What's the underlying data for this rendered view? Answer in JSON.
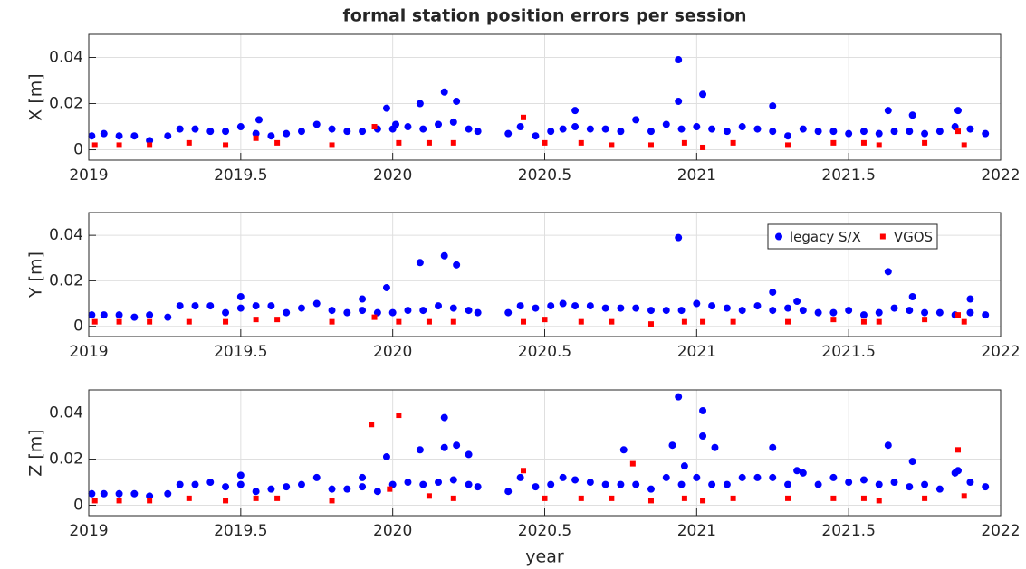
{
  "chart_data": [
    {
      "type": "scatter",
      "title": "formal station position errors per session",
      "ylabel": "X [m]",
      "xlim": [
        2019,
        2022
      ],
      "xticks": [
        2019,
        2019.5,
        2020,
        2020.5,
        2021,
        2021.5,
        2022
      ],
      "ylim": [
        -0.0045,
        0.05
      ],
      "yticks": [
        0,
        0.02,
        0.04
      ],
      "grid": true,
      "series": [
        {
          "name": "legacy S/X",
          "color": "#0000ff",
          "x": [
            2019.01,
            2019.05,
            2019.1,
            2019.15,
            2019.2,
            2019.26,
            2019.3,
            2019.35,
            2019.4,
            2019.45,
            2019.5,
            2019.55,
            2019.6,
            2019.65,
            2019.7,
            2019.75,
            2019.8,
            2019.85,
            2019.9,
            2019.95,
            2020.0,
            2020.05,
            2020.1,
            2020.15,
            2020.2,
            2020.25,
            2020.28,
            2020.38,
            2020.42,
            2020.47,
            2020.52,
            2020.56,
            2020.6,
            2020.65,
            2020.7,
            2020.75,
            2020.8,
            2020.85,
            2020.9,
            2020.95,
            2021.0,
            2021.05,
            2021.1,
            2021.15,
            2021.2,
            2021.25,
            2021.3,
            2021.35,
            2021.4,
            2021.45,
            2021.5,
            2021.55,
            2021.6,
            2021.65,
            2021.7,
            2021.75,
            2021.8,
            2021.85,
            2021.9,
            2021.95,
            2019.56,
            2019.98,
            2020.01,
            2020.09,
            2020.17,
            2020.21,
            2020.6,
            2020.94,
            2020.94,
            2021.02,
            2021.25,
            2021.63,
            2021.71,
            2021.86
          ],
          "values": [
            0.006,
            0.007,
            0.006,
            0.006,
            0.004,
            0.006,
            0.009,
            0.009,
            0.008,
            0.008,
            0.01,
            0.007,
            0.006,
            0.007,
            0.008,
            0.011,
            0.009,
            0.008,
            0.008,
            0.009,
            0.009,
            0.01,
            0.009,
            0.011,
            0.012,
            0.009,
            0.008,
            0.007,
            0.01,
            0.006,
            0.008,
            0.009,
            0.01,
            0.009,
            0.009,
            0.008,
            0.013,
            0.008,
            0.011,
            0.009,
            0.01,
            0.009,
            0.008,
            0.01,
            0.009,
            0.008,
            0.006,
            0.009,
            0.008,
            0.008,
            0.007,
            0.008,
            0.007,
            0.008,
            0.008,
            0.007,
            0.008,
            0.01,
            0.009,
            0.007,
            0.013,
            0.018,
            0.011,
            0.02,
            0.025,
            0.021,
            0.017,
            0.039,
            0.021,
            0.024,
            0.019,
            0.017,
            0.015,
            0.017
          ]
        },
        {
          "name": "VGOS",
          "color": "#ff0000",
          "x": [
            2019.02,
            2019.1,
            2019.2,
            2019.33,
            2019.45,
            2019.55,
            2019.62,
            2019.8,
            2019.94,
            2020.02,
            2020.12,
            2020.2,
            2020.43,
            2020.5,
            2020.62,
            2020.72,
            2020.85,
            2020.96,
            2021.02,
            2021.12,
            2021.3,
            2021.45,
            2021.55,
            2021.6,
            2021.75,
            2021.86,
            2021.88
          ],
          "values": [
            0.002,
            0.002,
            0.002,
            0.003,
            0.002,
            0.005,
            0.003,
            0.002,
            0.01,
            0.003,
            0.003,
            0.003,
            0.014,
            0.003,
            0.003,
            0.002,
            0.002,
            0.003,
            0.001,
            0.003,
            0.002,
            0.003,
            0.003,
            0.002,
            0.003,
            0.008,
            0.002
          ]
        }
      ]
    },
    {
      "type": "scatter",
      "ylabel": "Y [m]",
      "legend": "upper right",
      "xlim": [
        2019,
        2022
      ],
      "xticks": [
        2019,
        2019.5,
        2020,
        2020.5,
        2021,
        2021.5,
        2022
      ],
      "ylim": [
        -0.0045,
        0.05
      ],
      "yticks": [
        0,
        0.02,
        0.04
      ],
      "grid": true,
      "series": [
        {
          "name": "legacy S/X",
          "color": "#0000ff",
          "x": [
            2019.01,
            2019.05,
            2019.1,
            2019.15,
            2019.2,
            2019.26,
            2019.3,
            2019.35,
            2019.4,
            2019.45,
            2019.5,
            2019.55,
            2019.6,
            2019.65,
            2019.7,
            2019.75,
            2019.8,
            2019.85,
            2019.9,
            2019.95,
            2020.0,
            2020.05,
            2020.1,
            2020.15,
            2020.2,
            2020.25,
            2020.28,
            2020.38,
            2020.42,
            2020.47,
            2020.52,
            2020.56,
            2020.6,
            2020.65,
            2020.7,
            2020.75,
            2020.8,
            2020.85,
            2020.9,
            2020.95,
            2021.0,
            2021.05,
            2021.1,
            2021.15,
            2021.2,
            2021.25,
            2021.3,
            2021.35,
            2021.4,
            2021.45,
            2021.5,
            2021.55,
            2021.6,
            2021.65,
            2021.7,
            2021.75,
            2021.8,
            2021.85,
            2021.9,
            2021.95,
            2019.5,
            2019.9,
            2019.98,
            2020.09,
            2020.17,
            2020.21,
            2020.94,
            2021.25,
            2021.33,
            2021.63,
            2021.71,
            2021.9
          ],
          "values": [
            0.005,
            0.005,
            0.005,
            0.004,
            0.005,
            0.004,
            0.009,
            0.009,
            0.009,
            0.006,
            0.008,
            0.009,
            0.009,
            0.006,
            0.008,
            0.01,
            0.007,
            0.006,
            0.007,
            0.006,
            0.006,
            0.007,
            0.007,
            0.009,
            0.008,
            0.007,
            0.006,
            0.006,
            0.009,
            0.008,
            0.009,
            0.01,
            0.009,
            0.009,
            0.008,
            0.008,
            0.008,
            0.007,
            0.007,
            0.007,
            0.01,
            0.009,
            0.008,
            0.007,
            0.009,
            0.007,
            0.008,
            0.007,
            0.006,
            0.006,
            0.007,
            0.005,
            0.006,
            0.008,
            0.007,
            0.006,
            0.006,
            0.005,
            0.006,
            0.005,
            0.013,
            0.012,
            0.017,
            0.028,
            0.031,
            0.027,
            0.039,
            0.015,
            0.011,
            0.024,
            0.013,
            0.012
          ]
        },
        {
          "name": "VGOS",
          "color": "#ff0000",
          "x": [
            2019.02,
            2019.1,
            2019.2,
            2019.33,
            2019.45,
            2019.55,
            2019.62,
            2019.8,
            2019.94,
            2020.02,
            2020.12,
            2020.2,
            2020.43,
            2020.5,
            2020.62,
            2020.72,
            2020.85,
            2020.96,
            2021.02,
            2021.12,
            2021.3,
            2021.45,
            2021.55,
            2021.6,
            2021.75,
            2021.86,
            2021.88
          ],
          "values": [
            0.002,
            0.002,
            0.002,
            0.002,
            0.002,
            0.003,
            0.003,
            0.002,
            0.004,
            0.002,
            0.002,
            0.002,
            0.002,
            0.003,
            0.002,
            0.002,
            0.001,
            0.002,
            0.002,
            0.002,
            0.002,
            0.003,
            0.002,
            0.002,
            0.003,
            0.005,
            0.002
          ]
        }
      ]
    },
    {
      "type": "scatter",
      "ylabel": "Z [m]",
      "xlabel": "year",
      "xlim": [
        2019,
        2022
      ],
      "xticks": [
        2019,
        2019.5,
        2020,
        2020.5,
        2021,
        2021.5,
        2022
      ],
      "ylim": [
        -0.0045,
        0.05
      ],
      "yticks": [
        0,
        0.02,
        0.04
      ],
      "grid": true,
      "series": [
        {
          "name": "legacy S/X",
          "color": "#0000ff",
          "x": [
            2019.01,
            2019.05,
            2019.1,
            2019.15,
            2019.2,
            2019.26,
            2019.3,
            2019.35,
            2019.4,
            2019.45,
            2019.5,
            2019.55,
            2019.6,
            2019.65,
            2019.7,
            2019.75,
            2019.8,
            2019.85,
            2019.9,
            2019.95,
            2020.0,
            2020.05,
            2020.1,
            2020.15,
            2020.2,
            2020.25,
            2020.28,
            2020.38,
            2020.42,
            2020.47,
            2020.52,
            2020.56,
            2020.6,
            2020.65,
            2020.7,
            2020.75,
            2020.8,
            2020.85,
            2020.9,
            2020.95,
            2021.0,
            2021.05,
            2021.1,
            2021.15,
            2021.2,
            2021.25,
            2021.3,
            2021.35,
            2021.4,
            2021.45,
            2021.5,
            2021.55,
            2021.6,
            2021.65,
            2021.7,
            2021.75,
            2021.8,
            2021.85,
            2021.9,
            2021.95,
            2019.5,
            2019.9,
            2019.98,
            2020.09,
            2020.17,
            2020.17,
            2020.21,
            2020.25,
            2020.76,
            2020.92,
            2020.94,
            2020.96,
            2021.02,
            2021.02,
            2021.06,
            2021.25,
            2021.33,
            2021.63,
            2021.71,
            2021.86
          ],
          "values": [
            0.005,
            0.005,
            0.005,
            0.005,
            0.004,
            0.005,
            0.009,
            0.009,
            0.01,
            0.008,
            0.009,
            0.006,
            0.007,
            0.008,
            0.009,
            0.012,
            0.007,
            0.007,
            0.008,
            0.006,
            0.009,
            0.01,
            0.009,
            0.01,
            0.011,
            0.009,
            0.008,
            0.006,
            0.012,
            0.008,
            0.009,
            0.012,
            0.011,
            0.01,
            0.009,
            0.009,
            0.009,
            0.007,
            0.012,
            0.009,
            0.012,
            0.009,
            0.009,
            0.012,
            0.012,
            0.012,
            0.009,
            0.014,
            0.009,
            0.012,
            0.01,
            0.011,
            0.009,
            0.01,
            0.008,
            0.009,
            0.007,
            0.014,
            0.01,
            0.008,
            0.013,
            0.012,
            0.021,
            0.024,
            0.038,
            0.025,
            0.026,
            0.022,
            0.024,
            0.026,
            0.047,
            0.017,
            0.041,
            0.03,
            0.025,
            0.025,
            0.015,
            0.026,
            0.019,
            0.015
          ]
        },
        {
          "name": "VGOS",
          "color": "#ff0000",
          "x": [
            2019.02,
            2019.1,
            2019.2,
            2019.33,
            2019.45,
            2019.55,
            2019.62,
            2019.8,
            2019.93,
            2019.99,
            2020.02,
            2020.12,
            2020.2,
            2020.43,
            2020.5,
            2020.62,
            2020.72,
            2020.79,
            2020.85,
            2020.96,
            2021.02,
            2021.12,
            2021.3,
            2021.45,
            2021.55,
            2021.6,
            2021.75,
            2021.86,
            2021.88
          ],
          "values": [
            0.002,
            0.002,
            0.002,
            0.003,
            0.002,
            0.003,
            0.003,
            0.002,
            0.035,
            0.007,
            0.039,
            0.004,
            0.003,
            0.015,
            0.003,
            0.003,
            0.003,
            0.018,
            0.002,
            0.003,
            0.002,
            0.003,
            0.003,
            0.003,
            0.003,
            0.002,
            0.003,
            0.024,
            0.004
          ]
        }
      ]
    }
  ]
}
